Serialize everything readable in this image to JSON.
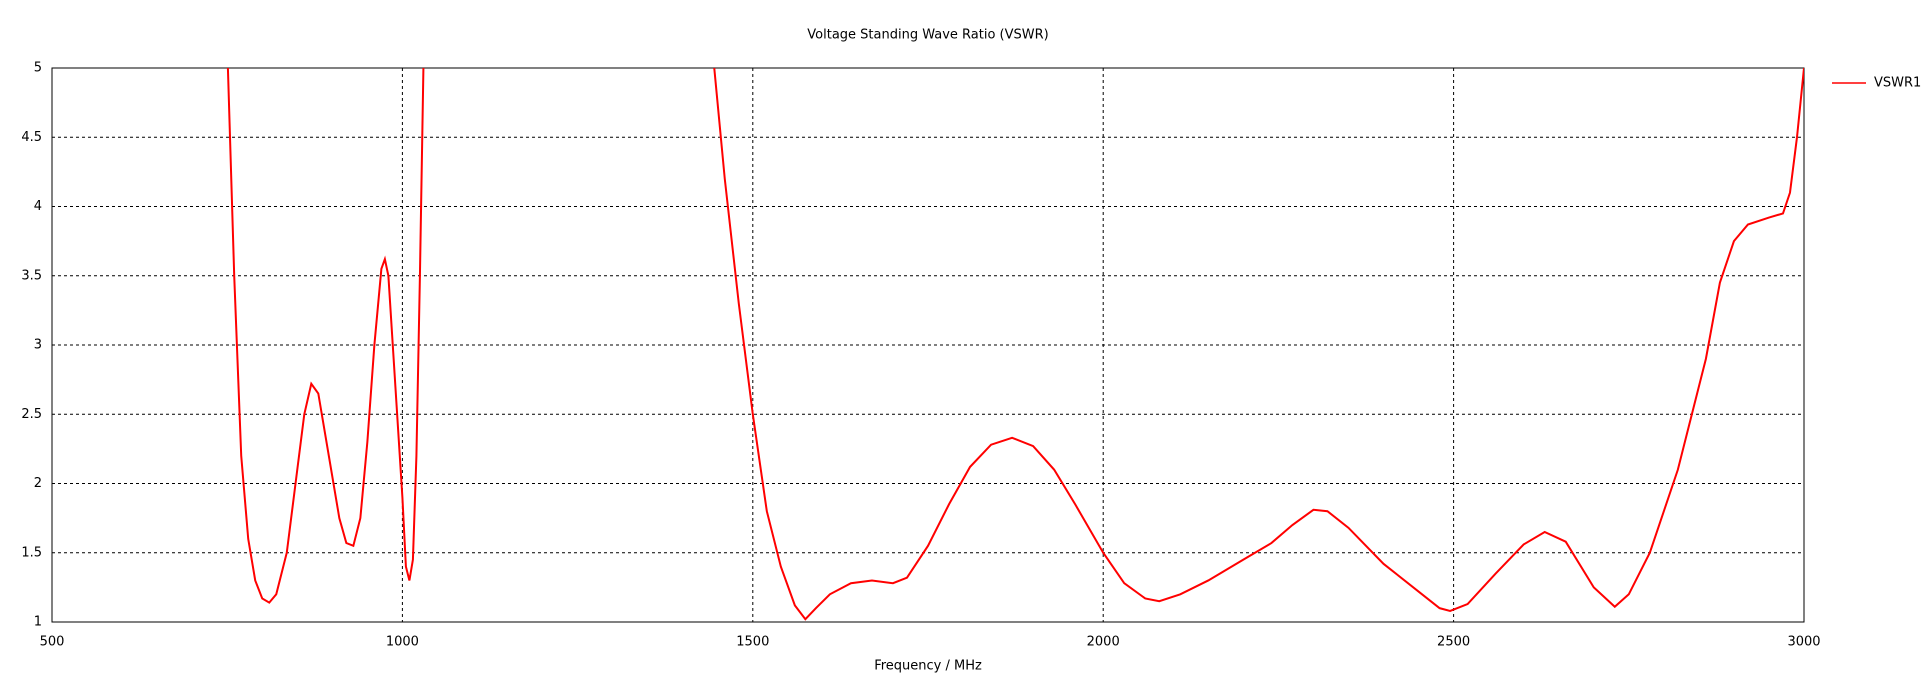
{
  "chart_data": {
    "type": "line",
    "title": "Voltage Standing Wave Ratio (VSWR)",
    "x_label": "Frequency / MHz",
    "x": [
      751,
      760,
      770,
      780,
      790,
      800,
      810,
      820,
      835,
      850,
      860,
      870,
      880,
      895,
      910,
      920,
      930,
      940,
      950,
      960,
      970,
      975,
      980,
      990,
      1000,
      1005,
      1010,
      1015,
      1020,
      1025,
      1030,
      1200,
      1445,
      1460,
      1480,
      1500,
      1520,
      1540,
      1560,
      1575,
      1590,
      1610,
      1640,
      1670,
      1700,
      1720,
      1750,
      1780,
      1810,
      1840,
      1870,
      1900,
      1930,
      1960,
      2000,
      2030,
      2060,
      2080,
      2110,
      2150,
      2200,
      2240,
      2270,
      2300,
      2320,
      2350,
      2400,
      2450,
      2480,
      2495,
      2520,
      2560,
      2600,
      2630,
      2660,
      2700,
      2730,
      2750,
      2780,
      2820,
      2860,
      2880,
      2900,
      2920,
      2950,
      2970,
      2980,
      2990,
      3000
    ],
    "series": [
      {
        "name": "VSWR1",
        "color": "#ff0000",
        "values": [
          5,
          3.5,
          2.2,
          1.6,
          1.3,
          1.17,
          1.14,
          1.2,
          1.5,
          2.1,
          2.5,
          2.72,
          2.65,
          2.2,
          1.75,
          1.57,
          1.55,
          1.75,
          2.3,
          3.0,
          3.55,
          3.62,
          3.5,
          2.7,
          1.9,
          1.4,
          1.3,
          1.45,
          2.2,
          3.5,
          5,
          null,
          5,
          4.2,
          3.3,
          2.5,
          1.8,
          1.4,
          1.12,
          1.02,
          1.1,
          1.2,
          1.28,
          1.3,
          1.28,
          1.32,
          1.55,
          1.85,
          2.12,
          2.28,
          2.33,
          2.27,
          2.1,
          1.85,
          1.5,
          1.28,
          1.17,
          1.15,
          1.2,
          1.3,
          1.45,
          1.57,
          1.7,
          1.81,
          1.8,
          1.68,
          1.42,
          1.22,
          1.1,
          1.08,
          1.13,
          1.35,
          1.56,
          1.65,
          1.58,
          1.25,
          1.11,
          1.2,
          1.5,
          2.1,
          2.9,
          3.45,
          3.75,
          3.87,
          3.92,
          3.95,
          4.1,
          4.5,
          5
        ]
      }
    ],
    "xlim": [
      500,
      3000
    ],
    "xticks": [
      500,
      1000,
      1500,
      2000,
      2500,
      3000
    ],
    "ylim": [
      1,
      5
    ],
    "yticks": [
      1,
      1.5,
      2,
      2.5,
      3,
      3.5,
      4,
      4.5,
      5
    ],
    "grid": true,
    "legend": "right"
  }
}
